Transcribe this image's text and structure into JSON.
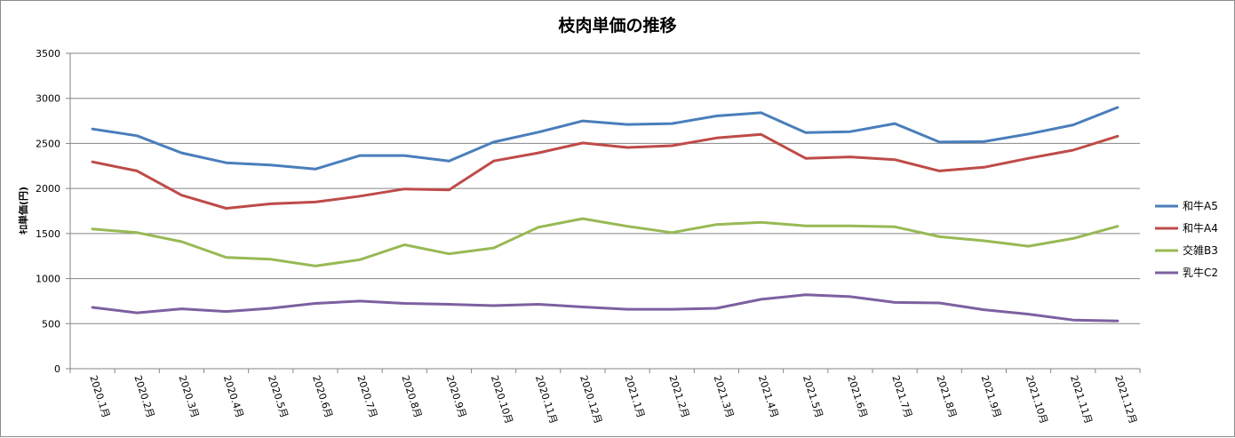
{
  "chart_data": {
    "type": "line",
    "title": "枝肉単価の推移",
    "ylabel": "ｷﾛ単価(円)",
    "xlabel": "",
    "ylim": [
      0,
      3500
    ],
    "yticks": [
      0,
      500,
      1000,
      1500,
      2000,
      2500,
      3000,
      3500
    ],
    "grid": true,
    "legend_position": "right",
    "categories": [
      "2020.1月",
      "2020.2月",
      "2020.3月",
      "2020.4月",
      "2020.5月",
      "2020.6月",
      "2020.7月",
      "2020.8月",
      "2020.9月",
      "2020.10月",
      "2020.11月",
      "2020.12月",
      "2021.1月",
      "2021.2月",
      "2021.3月",
      "2021.4月",
      "2021.5月",
      "2021.6月",
      "2021.7月",
      "2021.8月",
      "2021.9月",
      "2021.10月",
      "2021.11月",
      "2021.12月"
    ],
    "series": [
      {
        "name": "和牛A5",
        "color": "#4a7ebb",
        "values": [
          2660,
          2585,
          2395,
          2285,
          2260,
          2215,
          2365,
          2365,
          2305,
          2515,
          2625,
          2750,
          2710,
          2720,
          2805,
          2840,
          2620,
          2630,
          2720,
          2515,
          2520,
          2605,
          2705,
          2900
        ]
      },
      {
        "name": "和牛A4",
        "color": "#be4b48",
        "values": [
          2295,
          2195,
          1925,
          1780,
          1830,
          1850,
          1915,
          1995,
          1985,
          2305,
          2395,
          2505,
          2455,
          2475,
          2560,
          2600,
          2335,
          2350,
          2320,
          2195,
          2235,
          2335,
          2425,
          2580
        ]
      },
      {
        "name": "交雑B3",
        "color": "#98b954",
        "values": [
          1550,
          1510,
          1410,
          1235,
          1215,
          1140,
          1210,
          1375,
          1275,
          1340,
          1570,
          1665,
          1580,
          1510,
          1600,
          1625,
          1585,
          1585,
          1575,
          1465,
          1420,
          1360,
          1445,
          1580
        ]
      },
      {
        "name": "乳牛C2",
        "color": "#7d60a0",
        "values": [
          680,
          620,
          665,
          635,
          670,
          725,
          750,
          725,
          715,
          700,
          715,
          685,
          660,
          660,
          670,
          770,
          820,
          800,
          735,
          730,
          655,
          605,
          540,
          530
        ]
      }
    ]
  }
}
